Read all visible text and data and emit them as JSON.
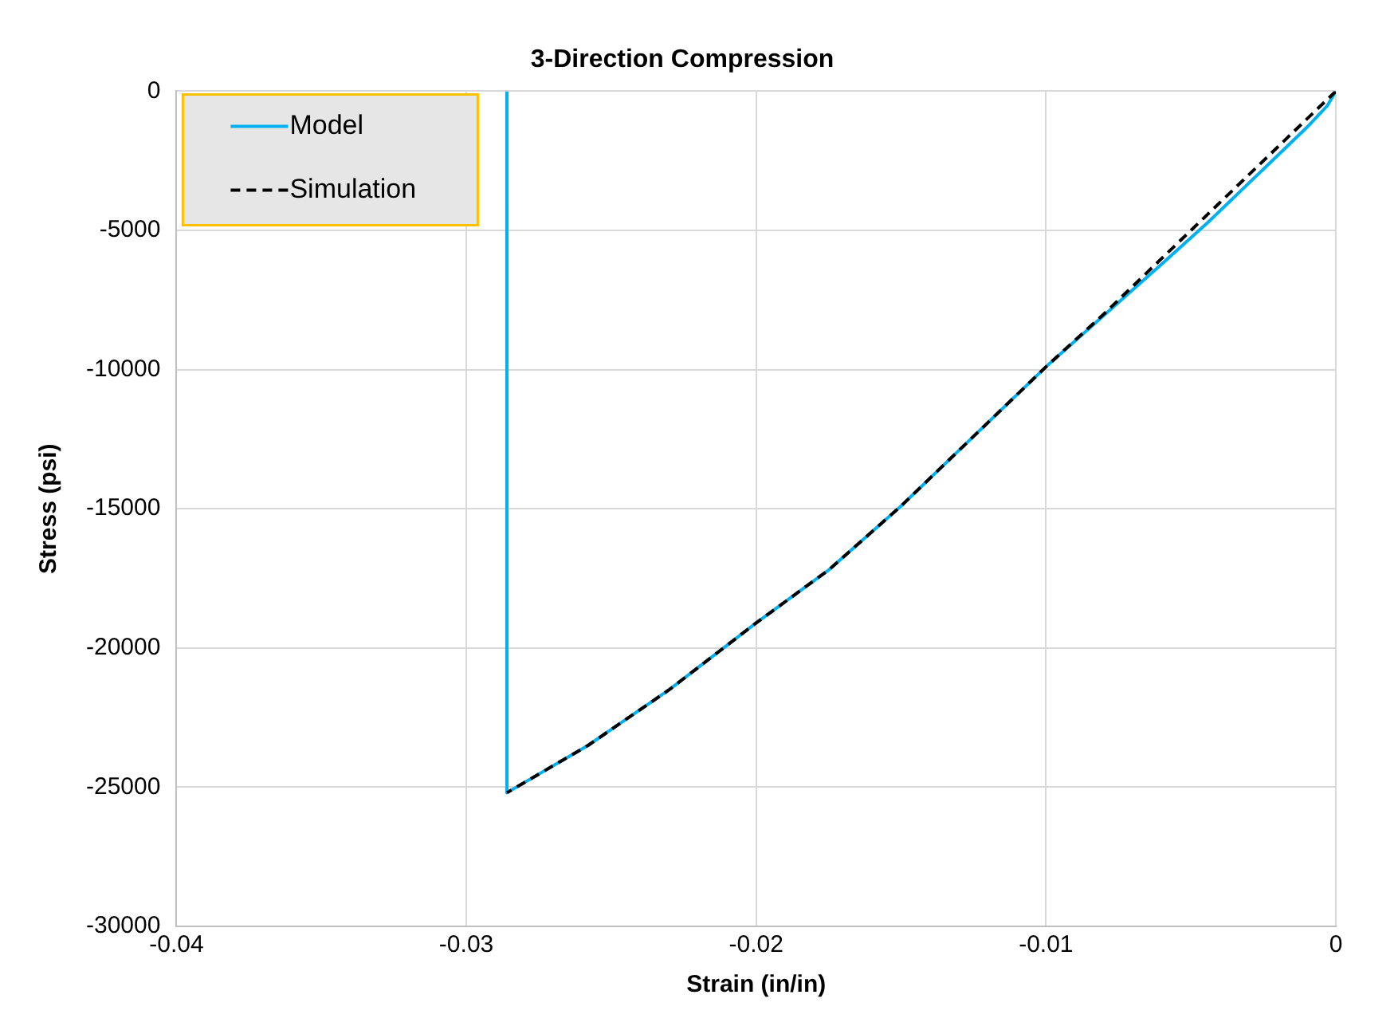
{
  "chart_data": {
    "type": "line",
    "title": "3-Direction Compression",
    "xlabel": "Strain (in/in)",
    "ylabel": "Stress (psi)",
    "xlim": [
      -0.04,
      0
    ],
    "xticks": [
      -0.04,
      -0.03,
      -0.02,
      -0.01,
      0
    ],
    "ylim": [
      -30000,
      0
    ],
    "yticks": [
      -30000,
      -25000,
      -20000,
      -15000,
      -10000,
      -5000,
      0
    ],
    "grid": true,
    "legend": "top left",
    "marker": "none",
    "series": [
      {
        "name": "Model",
        "color": "#00b0f0",
        "line_style": "solid",
        "x": [
          0,
          -0.0003,
          -0.001,
          -0.002,
          -0.003,
          -0.0044,
          -0.006,
          -0.008,
          -0.01,
          -0.0125,
          -0.015,
          -0.0175,
          -0.02,
          -0.023,
          -0.0258,
          -0.0286,
          -0.0286
        ],
        "values": [
          0,
          -530,
          -1300,
          -2300,
          -3300,
          -4700,
          -6200,
          -8050,
          -9900,
          -12400,
          -14900,
          -17200,
          -19100,
          -21500,
          -23500,
          -25200,
          0
        ]
      },
      {
        "name": "Simulation",
        "color": "#000000",
        "line_style": "dashed",
        "x": [
          0,
          -0.002,
          -0.004,
          -0.006,
          -0.008,
          -0.01,
          -0.0125,
          -0.015,
          -0.0175,
          -0.02,
          -0.023,
          -0.0258,
          -0.0286
        ],
        "values": [
          0,
          -2000,
          -4000,
          -6000,
          -8000,
          -9900,
          -12400,
          -14900,
          -17200,
          -19100,
          -21500,
          -23500,
          -25200
        ]
      }
    ]
  }
}
